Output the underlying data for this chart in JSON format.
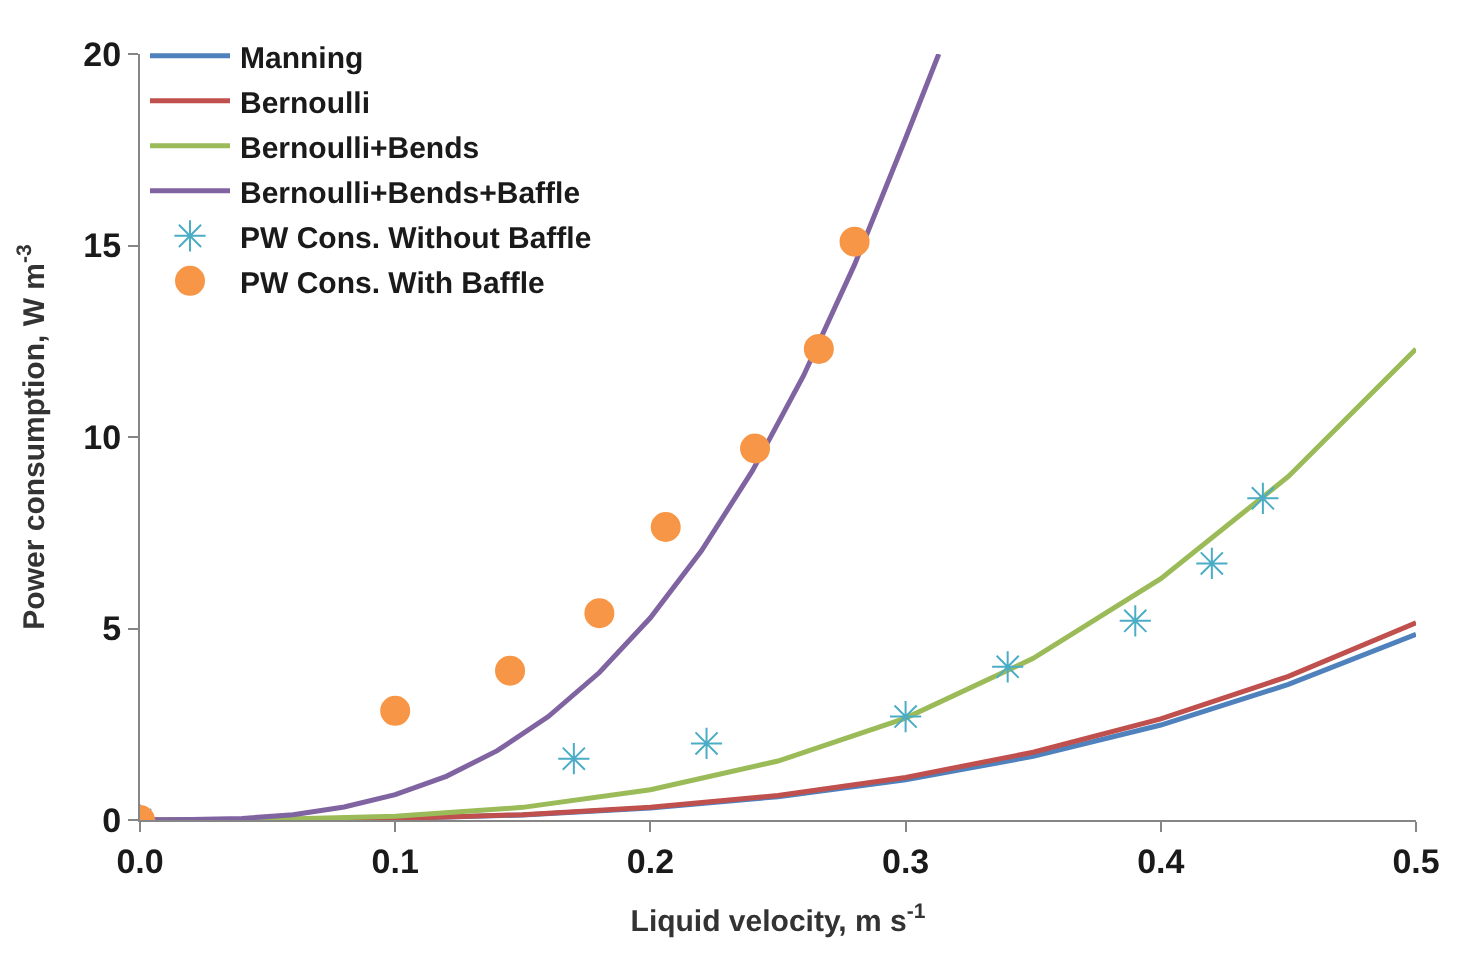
{
  "chart_data": {
    "type": "line",
    "xlabel": "Liquid velocity, m s$^{-1}$",
    "ylabel": "Power consumption, W m$^{-3}$",
    "xlim": [
      0,
      0.5
    ],
    "ylim": [
      0,
      20
    ],
    "xticks": [
      {
        "value": 0,
        "label": "0.0"
      },
      0.1,
      0.2,
      0.3,
      0.4,
      0.5
    ],
    "yticks": [
      0,
      5,
      10,
      15,
      20
    ],
    "legend": "top left",
    "series": [
      {
        "name": "Manning",
        "color": "#4f81bd",
        "marker": "none",
        "x": [
          0,
          0.05,
          0.1,
          0.15,
          0.2,
          0.25,
          0.3,
          0.35,
          0.4,
          0.45,
          0.5
        ],
        "values": [
          0,
          0.01,
          0.04,
          0.13,
          0.31,
          0.61,
          1.05,
          1.66,
          2.48,
          3.54,
          4.85
        ]
      },
      {
        "name": "Bernoulli",
        "color": "#c0504d",
        "marker": "none",
        "x": [
          0,
          0.05,
          0.1,
          0.15,
          0.2,
          0.25,
          0.3,
          0.35,
          0.4,
          0.45,
          0.5
        ],
        "values": [
          0,
          0.01,
          0.04,
          0.14,
          0.33,
          0.64,
          1.11,
          1.77,
          2.64,
          3.75,
          5.15
        ]
      },
      {
        "name": "Bernoulli+Bends",
        "color": "#9bbb59",
        "marker": "none",
        "x": [
          0,
          0.05,
          0.1,
          0.15,
          0.2,
          0.25,
          0.3,
          0.35,
          0.4,
          0.45,
          0.5
        ],
        "values": [
          0,
          0.01,
          0.1,
          0.33,
          0.79,
          1.54,
          2.66,
          4.22,
          6.3,
          8.97,
          12.3
        ]
      },
      {
        "name": "Bernoulli+Bends+Baffle",
        "color": "#8064a2",
        "marker": "none",
        "x": [
          0,
          0.02,
          0.04,
          0.06,
          0.08,
          0.1,
          0.12,
          0.14,
          0.16,
          0.18,
          0.2,
          0.22,
          0.24,
          0.26,
          0.28,
          0.3,
          0.313
        ],
        "values": [
          0,
          0.01,
          0.04,
          0.14,
          0.34,
          0.66,
          1.14,
          1.81,
          2.7,
          3.85,
          5.28,
          7.03,
          9.12,
          11.6,
          14.5,
          17.8,
          20
        ]
      },
      {
        "name": "PW Cons. Without Baffle",
        "color": "#4bacc6",
        "type": "scatter",
        "marker": "cross",
        "x": [
          0,
          0.17,
          0.222,
          0.3,
          0.34,
          0.39,
          0.42,
          0.44
        ],
        "values": [
          0,
          1.6,
          2.0,
          2.7,
          4.0,
          5.2,
          6.7,
          8.4
        ]
      },
      {
        "name": "PW Cons. With Baffle",
        "color": "#f79646",
        "type": "scatter",
        "marker": "circle",
        "x": [
          0,
          0.1,
          0.145,
          0.18,
          0.206,
          0.241,
          0.266,
          0.28
        ],
        "values": [
          0,
          2.85,
          3.9,
          5.4,
          7.65,
          9.7,
          12.3,
          15.1
        ]
      }
    ]
  }
}
